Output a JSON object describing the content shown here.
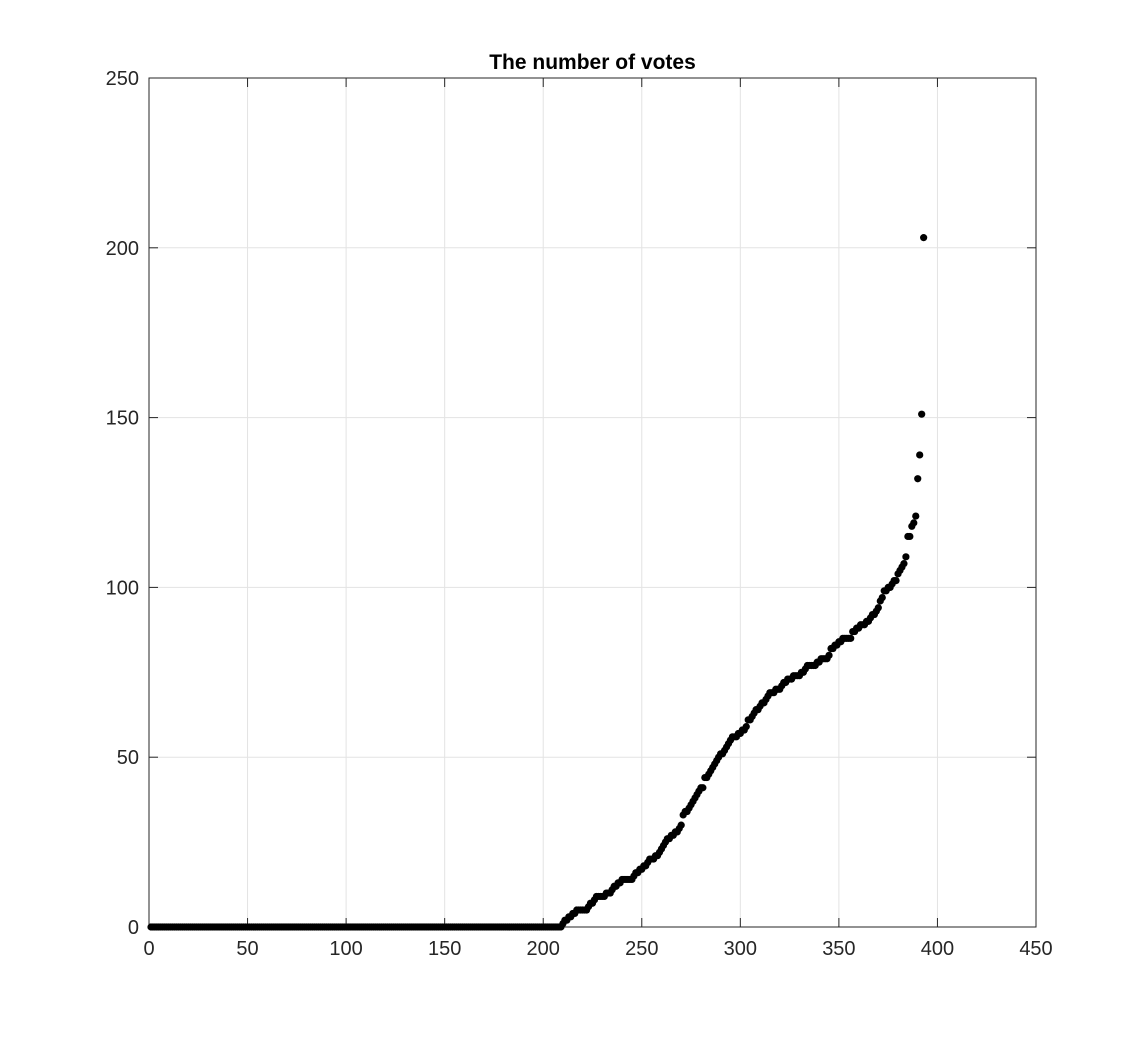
{
  "chart_data": {
    "type": "scatter",
    "title": "The number of votes",
    "xlabel": "",
    "ylabel": "",
    "xlim": [
      0,
      450
    ],
    "ylim": [
      0,
      250
    ],
    "x_ticks": [
      0,
      50,
      100,
      150,
      200,
      250,
      300,
      350,
      400,
      450
    ],
    "y_ticks": [
      0,
      50,
      100,
      150,
      200,
      250
    ],
    "grid": true,
    "legend": "none",
    "marker_color": "#000000",
    "grid_color": "#e3e3e3",
    "axis_color": "#262626",
    "series": [
      {
        "zero_run": {
          "x_start": 1,
          "x_end": 209,
          "y": 0
        },
        "points": [
          [
            210,
            1
          ],
          [
            211,
            2
          ],
          [
            212,
            2
          ],
          [
            213,
            3
          ],
          [
            214,
            3
          ],
          [
            215,
            4
          ],
          [
            216,
            4
          ],
          [
            217,
            5
          ],
          [
            218,
            5
          ],
          [
            219,
            5
          ],
          [
            220,
            5
          ],
          [
            221,
            5
          ],
          [
            222,
            5
          ],
          [
            223,
            6
          ],
          [
            224,
            7
          ],
          [
            225,
            7
          ],
          [
            226,
            8
          ],
          [
            227,
            9
          ],
          [
            228,
            9
          ],
          [
            229,
            9
          ],
          [
            230,
            9
          ],
          [
            231,
            9
          ],
          [
            232,
            10
          ],
          [
            233,
            10
          ],
          [
            234,
            10
          ],
          [
            235,
            11
          ],
          [
            236,
            12
          ],
          [
            237,
            12
          ],
          [
            238,
            13
          ],
          [
            239,
            13
          ],
          [
            240,
            14
          ],
          [
            241,
            14
          ],
          [
            242,
            14
          ],
          [
            243,
            14
          ],
          [
            244,
            14
          ],
          [
            245,
            14
          ],
          [
            246,
            15
          ],
          [
            247,
            16
          ],
          [
            248,
            16
          ],
          [
            249,
            17
          ],
          [
            250,
            17
          ],
          [
            251,
            18
          ],
          [
            252,
            18
          ],
          [
            253,
            19
          ],
          [
            254,
            20
          ],
          [
            255,
            20
          ],
          [
            256,
            20
          ],
          [
            257,
            21
          ],
          [
            258,
            21
          ],
          [
            259,
            22
          ],
          [
            260,
            23
          ],
          [
            261,
            24
          ],
          [
            262,
            25
          ],
          [
            263,
            26
          ],
          [
            264,
            26
          ],
          [
            265,
            27
          ],
          [
            266,
            27
          ],
          [
            267,
            28
          ],
          [
            268,
            28
          ],
          [
            269,
            29
          ],
          [
            270,
            30
          ],
          [
            271,
            33
          ],
          [
            272,
            34
          ],
          [
            273,
            34
          ],
          [
            274,
            35
          ],
          [
            275,
            36
          ],
          [
            276,
            37
          ],
          [
            277,
            38
          ],
          [
            278,
            39
          ],
          [
            279,
            40
          ],
          [
            280,
            41
          ],
          [
            281,
            41
          ],
          [
            282,
            44
          ],
          [
            283,
            44
          ],
          [
            284,
            45
          ],
          [
            285,
            46
          ],
          [
            286,
            47
          ],
          [
            287,
            48
          ],
          [
            288,
            49
          ],
          [
            289,
            50
          ],
          [
            290,
            51
          ],
          [
            291,
            51
          ],
          [
            292,
            52
          ],
          [
            293,
            53
          ],
          [
            294,
            54
          ],
          [
            295,
            55
          ],
          [
            296,
            56
          ],
          [
            297,
            56
          ],
          [
            298,
            56
          ],
          [
            299,
            57
          ],
          [
            300,
            57
          ],
          [
            301,
            58
          ],
          [
            302,
            58
          ],
          [
            303,
            59
          ],
          [
            304,
            61
          ],
          [
            305,
            61
          ],
          [
            306,
            62
          ],
          [
            307,
            63
          ],
          [
            308,
            64
          ],
          [
            309,
            64
          ],
          [
            310,
            65
          ],
          [
            311,
            66
          ],
          [
            312,
            66
          ],
          [
            313,
            67
          ],
          [
            314,
            68
          ],
          [
            315,
            69
          ],
          [
            316,
            69
          ],
          [
            317,
            69
          ],
          [
            318,
            70
          ],
          [
            319,
            70
          ],
          [
            320,
            70
          ],
          [
            321,
            71
          ],
          [
            322,
            72
          ],
          [
            323,
            72
          ],
          [
            324,
            73
          ],
          [
            325,
            73
          ],
          [
            326,
            73
          ],
          [
            327,
            74
          ],
          [
            328,
            74
          ],
          [
            329,
            74
          ],
          [
            330,
            74
          ],
          [
            331,
            75
          ],
          [
            332,
            75
          ],
          [
            333,
            76
          ],
          [
            334,
            77
          ],
          [
            335,
            77
          ],
          [
            336,
            77
          ],
          [
            337,
            77
          ],
          [
            338,
            77
          ],
          [
            339,
            78
          ],
          [
            340,
            78
          ],
          [
            341,
            79
          ],
          [
            342,
            79
          ],
          [
            343,
            79
          ],
          [
            344,
            79
          ],
          [
            345,
            80
          ],
          [
            346,
            82
          ],
          [
            347,
            82
          ],
          [
            348,
            83
          ],
          [
            349,
            83
          ],
          [
            350,
            84
          ],
          [
            351,
            84
          ],
          [
            352,
            85
          ],
          [
            353,
            85
          ],
          [
            354,
            85
          ],
          [
            355,
            85
          ],
          [
            356,
            85
          ],
          [
            357,
            87
          ],
          [
            358,
            87
          ],
          [
            359,
            88
          ],
          [
            360,
            88
          ],
          [
            361,
            89
          ],
          [
            362,
            89
          ],
          [
            363,
            89
          ],
          [
            364,
            90
          ],
          [
            365,
            90
          ],
          [
            366,
            91
          ],
          [
            367,
            92
          ],
          [
            368,
            92
          ],
          [
            369,
            93
          ],
          [
            370,
            94
          ],
          [
            371,
            96
          ],
          [
            372,
            97
          ],
          [
            373,
            99
          ],
          [
            374,
            99
          ],
          [
            375,
            100
          ],
          [
            376,
            100
          ],
          [
            377,
            101
          ],
          [
            378,
            102
          ],
          [
            379,
            102
          ],
          [
            380,
            104
          ],
          [
            381,
            105
          ],
          [
            382,
            106
          ],
          [
            383,
            107
          ],
          [
            384,
            109
          ],
          [
            385,
            115
          ],
          [
            386,
            115
          ],
          [
            387,
            118
          ],
          [
            388,
            119
          ],
          [
            389,
            121
          ],
          [
            390,
            132
          ],
          [
            391,
            139
          ],
          [
            392,
            151
          ],
          [
            393,
            203
          ]
        ]
      }
    ]
  }
}
